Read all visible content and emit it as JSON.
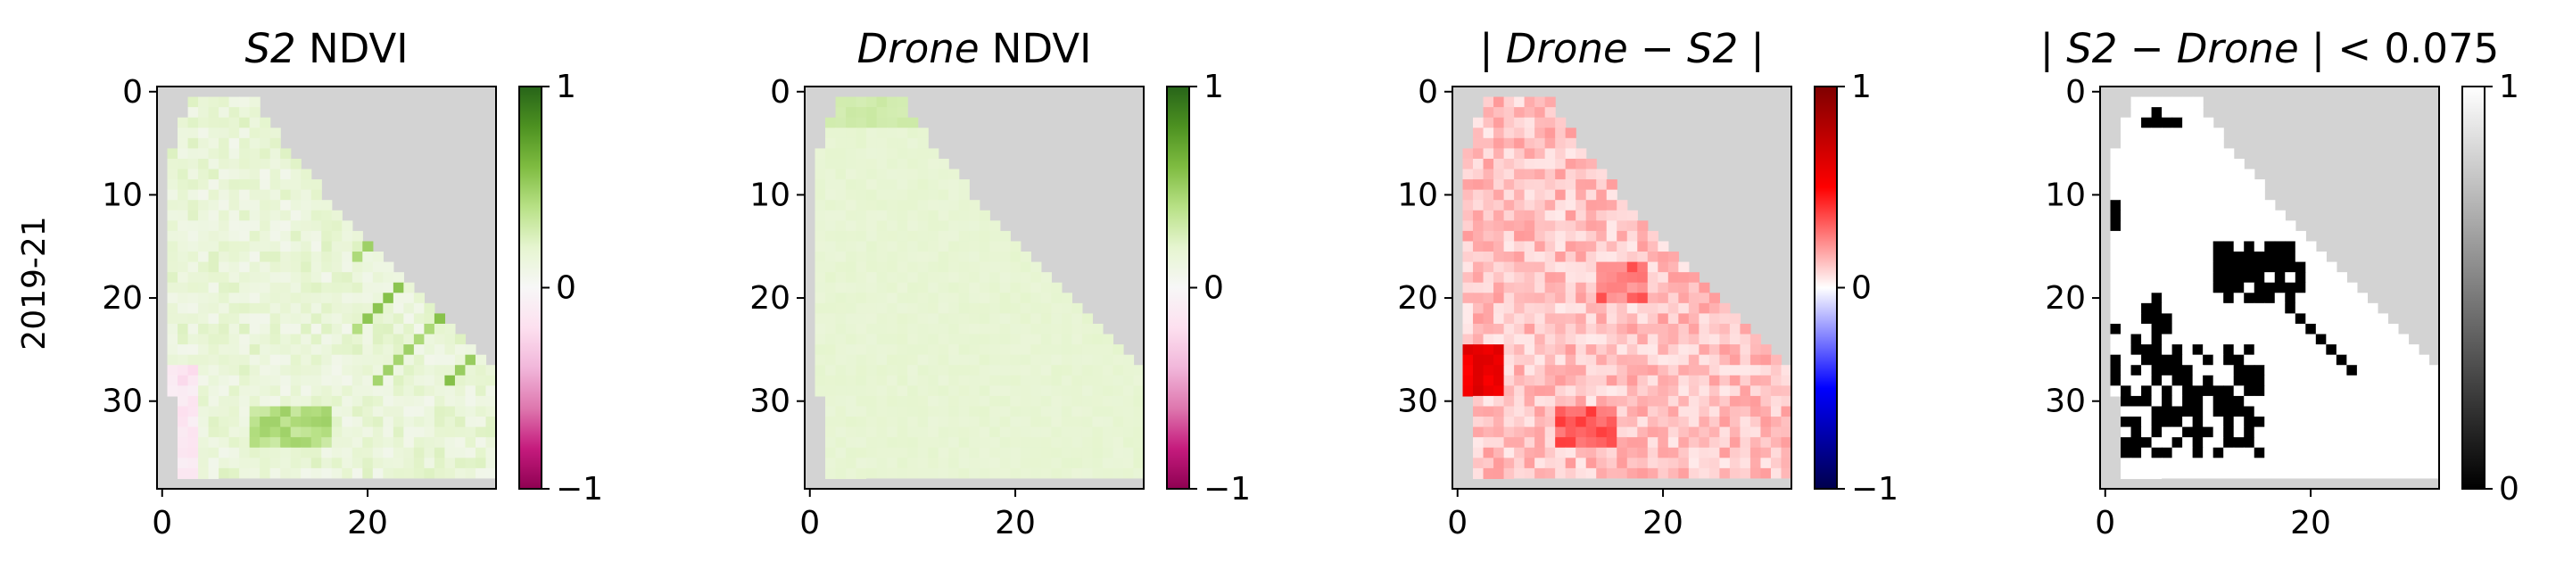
{
  "figure": {
    "row_label": "2019-21"
  },
  "chart_data": [
    {
      "type": "heatmap",
      "title": "S2 NDVI",
      "title_parts": [
        {
          "t": "S2",
          "italic": true
        },
        {
          "t": " NDVI",
          "italic": false
        }
      ],
      "xlim": [
        -0.5,
        32.5
      ],
      "ylim": [
        38.5,
        -0.5
      ],
      "x_ticks": [
        0,
        20
      ],
      "y_ticks": [
        0,
        10,
        20,
        30
      ],
      "x_tick_labels": [
        "0",
        "20"
      ],
      "y_tick_labels": [
        "0",
        "10",
        "20",
        "30"
      ],
      "nodata_color": "#d3d3d3",
      "colorbar": {
        "colormap": "PiYG",
        "range": [
          -1,
          1
        ],
        "ticks": [
          1,
          0,
          -1
        ],
        "tick_labels": [
          "1",
          "0",
          "−1"
        ]
      },
      "typical_value": 0.15
    },
    {
      "type": "heatmap",
      "title": "Drone NDVI",
      "title_parts": [
        {
          "t": "Drone",
          "italic": true
        },
        {
          "t": " NDVI",
          "italic": false
        }
      ],
      "xlim": [
        -0.5,
        32.5
      ],
      "ylim": [
        38.5,
        -0.5
      ],
      "x_ticks": [
        0,
        20
      ],
      "y_ticks": [
        0,
        10,
        20,
        30
      ],
      "x_tick_labels": [
        "0",
        "20"
      ],
      "y_tick_labels": [
        "0",
        "10",
        "20",
        "30"
      ],
      "nodata_color": "#d3d3d3",
      "colorbar": {
        "colormap": "PiYG",
        "range": [
          -1,
          1
        ],
        "ticks": [
          1,
          0,
          -1
        ],
        "tick_labels": [
          "1",
          "0",
          "−1"
        ]
      },
      "typical_value": 0.18
    },
    {
      "type": "heatmap",
      "title": "| Drone − S2 |",
      "title_parts": [
        {
          "t": "| ",
          "italic": true
        },
        {
          "t": "Drone",
          "italic": true
        },
        {
          "t": " − ",
          "italic": false
        },
        {
          "t": "S2",
          "italic": true
        },
        {
          "t": " |",
          "italic": true
        }
      ],
      "xlim": [
        -0.5,
        32.5
      ],
      "ylim": [
        38.5,
        -0.5
      ],
      "x_ticks": [
        0,
        20
      ],
      "y_ticks": [
        0,
        10,
        20,
        30
      ],
      "x_tick_labels": [
        "0",
        "20"
      ],
      "y_tick_labels": [
        "0",
        "10",
        "20",
        "30"
      ],
      "nodata_color": "#d3d3d3",
      "colorbar": {
        "colormap": "seismic",
        "range": [
          -1,
          1
        ],
        "ticks": [
          1,
          0,
          -1
        ],
        "tick_labels": [
          "1",
          "0",
          "−1"
        ]
      },
      "typical_value": 0.12
    },
    {
      "type": "heatmap",
      "title": "| S2 − Drone | < 0.075",
      "title_parts": [
        {
          "t": "| ",
          "italic": true
        },
        {
          "t": "S2",
          "italic": true
        },
        {
          "t": " − ",
          "italic": false
        },
        {
          "t": "Drone",
          "italic": true
        },
        {
          "t": " | ",
          "italic": true
        },
        {
          "t": "< 0.075",
          "italic": false
        }
      ],
      "xlim": [
        -0.5,
        32.5
      ],
      "ylim": [
        38.5,
        -0.5
      ],
      "x_ticks": [
        0,
        20
      ],
      "y_ticks": [
        0,
        10,
        20,
        30
      ],
      "x_tick_labels": [
        "0",
        "20"
      ],
      "y_tick_labels": [
        "0",
        "10",
        "20",
        "30"
      ],
      "nodata_color": "#d3d3d3",
      "colorbar": {
        "colormap": "gray",
        "range": [
          0,
          1
        ],
        "ticks": [
          1,
          0
        ],
        "tick_labels": [
          "1",
          "0"
        ]
      },
      "threshold": 0.075,
      "binary_values": [
        0,
        1
      ]
    }
  ]
}
